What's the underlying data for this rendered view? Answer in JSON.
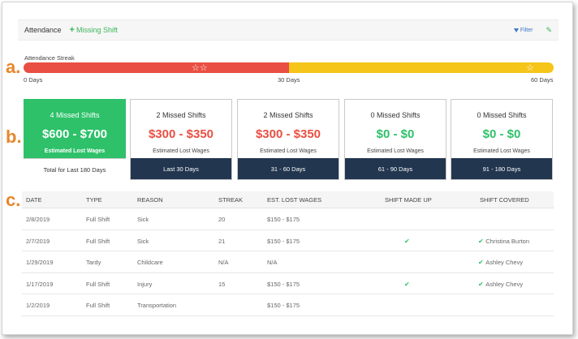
{
  "markers": {
    "a": "a.",
    "b": "b.",
    "c": "c."
  },
  "header": {
    "title": "Attendance",
    "missing_shift": "Missing Shift",
    "filter": "Filter"
  },
  "streak": {
    "label": "Attendance Streak",
    "progress_fraction": 0.5,
    "ticks": [
      "0 Days",
      "30 Days",
      "60 Days"
    ],
    "stars_first": "☆☆",
    "star_last": "☆"
  },
  "colors": {
    "streak_red": "#e94f43",
    "streak_yellow": "#f5c519",
    "highlight_green": "#2ec16a",
    "footer_navy": "#22364f"
  },
  "cards": [
    {
      "count": "4 Missed Shifts",
      "amount": "$600 - $700",
      "sublabel": "Estimated Lost Wages",
      "footer": "Total for Last 180 Days"
    },
    {
      "count": "2 Missed Shifts",
      "amount": "$300 - $350",
      "sublabel": "Estimated Lost Wages",
      "footer": "Last 30 Days"
    },
    {
      "count": "2 Missed Shifts",
      "amount": "$300 - $350",
      "sublabel": "Estimated Lost Wages",
      "footer": "31 - 60 Days"
    },
    {
      "count": "0 Missed Shifts",
      "amount": "$0 - $0",
      "sublabel": "Estimated Lost Wages",
      "footer": "61 - 90 Days"
    },
    {
      "count": "0 Missed Shifts",
      "amount": "$0 - $0",
      "sublabel": "Estimated Lost Wages",
      "footer": "91 - 180 Days"
    }
  ],
  "table": {
    "headers": [
      "DATE",
      "TYPE",
      "REASON",
      "STREAK",
      "EST. LOST WAGES",
      "SHIFT MADE UP",
      "SHIFT COVERED"
    ],
    "rows": [
      {
        "date": "2/8/2019",
        "type": "Full Shift",
        "reason": "Sick",
        "streak": "20",
        "wages": "$150 - $175",
        "made_up": false,
        "covered": ""
      },
      {
        "date": "2/7/2019",
        "type": "Full Shift",
        "reason": "Sick",
        "streak": "21",
        "wages": "$150 - $175",
        "made_up": true,
        "covered": "Christina Burton"
      },
      {
        "date": "1/29/2019",
        "type": "Tardy",
        "reason": "Childcare",
        "streak": "N/A",
        "wages": "N/A",
        "made_up": false,
        "covered": "Ashley Chevy"
      },
      {
        "date": "1/17/2019",
        "type": "Full Shift",
        "reason": "Injury",
        "streak": "15",
        "wages": "$150 - $175",
        "made_up": true,
        "covered": "Ashley Chevy"
      },
      {
        "date": "1/2/2019",
        "type": "Full Shift",
        "reason": "Transportation",
        "streak": "",
        "wages": "$150 - $175",
        "made_up": false,
        "covered": ""
      }
    ]
  }
}
